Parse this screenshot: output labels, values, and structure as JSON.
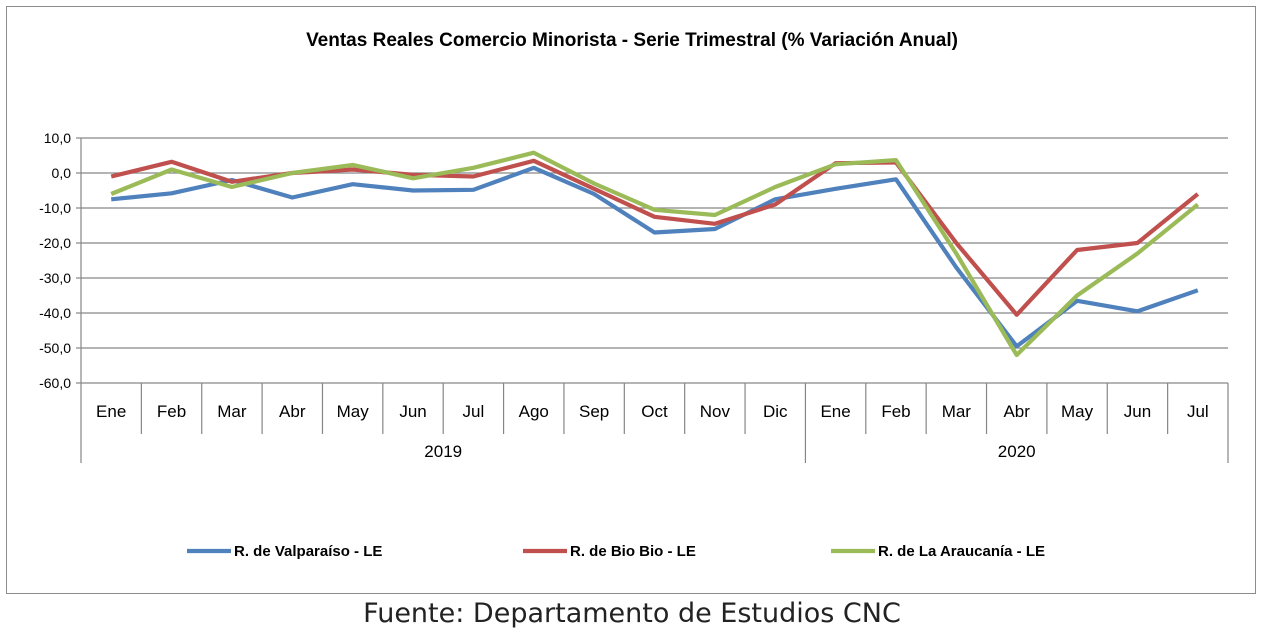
{
  "chart_data": {
    "type": "line",
    "title": "Ventas Reales Comercio Minorista - Serie Trimestral (% Variación Anual)",
    "xlabel": "",
    "ylabel": "",
    "ylim": [
      -60,
      10
    ],
    "ytick_labels": [
      "10,0",
      "0,0",
      "-10,0",
      "-20,0",
      "-30,0",
      "-40,0",
      "-50,0",
      "-60,0"
    ],
    "categories": [
      "Ene",
      "Feb",
      "Mar",
      "Abr",
      "May",
      "Jun",
      "Jul",
      "Ago",
      "Sep",
      "Oct",
      "Nov",
      "Dic",
      "Ene",
      "Feb",
      "Mar",
      "Abr",
      "May",
      "Jun",
      "Jul"
    ],
    "groups": [
      {
        "label": "2019",
        "count": 12
      },
      {
        "label": "2020",
        "count": 7
      }
    ],
    "grid": true,
    "legend_position": "bottom",
    "series": [
      {
        "name": "R. de Valparaíso - LE",
        "color": "#4f81bd",
        "values": [
          -7.5,
          -5.8,
          -2.0,
          -7.0,
          -3.2,
          -5.0,
          -4.8,
          1.5,
          -6.0,
          -17.0,
          -16.0,
          -7.5,
          -4.5,
          -1.8,
          -27.0,
          -49.5,
          -36.5,
          -39.5,
          -33.5
        ]
      },
      {
        "name": "R. de Bio Bio - LE",
        "color": "#c0504d",
        "values": [
          -1.0,
          3.2,
          -2.5,
          0.0,
          1.0,
          -0.5,
          -1.0,
          3.5,
          -4.5,
          -12.5,
          -14.5,
          -9.0,
          2.8,
          3.0,
          -20.0,
          -40.5,
          -22.0,
          -20.0,
          -6.0
        ]
      },
      {
        "name": "R. de La Araucanía - LE",
        "color": "#9bbb59",
        "values": [
          -6.0,
          1.0,
          -4.0,
          0.0,
          2.3,
          -1.5,
          1.5,
          5.8,
          -3.0,
          -10.5,
          -12.0,
          -4.0,
          2.5,
          3.7,
          -23.0,
          -52.0,
          -35.0,
          -23.0,
          -9.0
        ]
      }
    ]
  },
  "source_note": "Fuente: Departamento de Estudios CNC"
}
